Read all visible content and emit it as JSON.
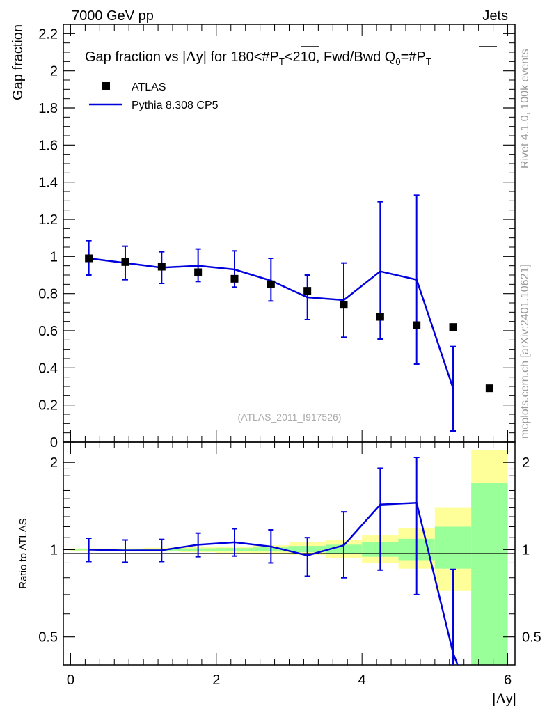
{
  "header": {
    "left": "7000 GeV pp",
    "right": "Jets"
  },
  "side": {
    "rivet": "Rivet 4.1.0,  100k events",
    "mcplots": "mcplots.cern.ch [arXiv:2401.10621]"
  },
  "colors": {
    "data": "#000000",
    "mc": "#0000dd",
    "band_outer": "#ffff99",
    "band_inner": "#99ff99"
  },
  "chart_data": [
    {
      "type": "scatter",
      "panel": "main",
      "title_parts": {
        "pre": "Gap fraction vs |",
        "delta": "Δ",
        "mid": "y| for 180<#",
        "pt1": "P",
        "sub1": "T",
        "post": "<210, Fwd/Bwd Q",
        "q_sub": "0",
        "eq": "=#",
        "pt2": "P",
        "sub2": "T"
      },
      "ylabel": "Gap fraction",
      "ylim": [
        0,
        2.25
      ],
      "yticks": [
        "0",
        "0.2",
        "0.4",
        "0.6",
        "0.8",
        "1",
        "1.2",
        "1.4",
        "1.6",
        "1.8",
        "2",
        "2.2"
      ],
      "xlim": [
        -0.1,
        6.1
      ],
      "watermark": "(ATLAS_2011_I917526)",
      "legend": [
        {
          "name": "ATLAS",
          "marker": "square"
        },
        {
          "name": "Pythia 8.308 CP5",
          "marker": "line"
        }
      ],
      "series": [
        {
          "name": "ATLAS",
          "x": [
            0.25,
            0.75,
            1.25,
            1.75,
            2.25,
            2.75,
            3.25,
            3.75,
            4.25,
            4.75,
            5.25,
            5.75
          ],
          "y": [
            0.99,
            0.97,
            0.945,
            0.915,
            0.88,
            0.85,
            0.815,
            0.74,
            0.675,
            0.63,
            0.62,
            0.29
          ]
        },
        {
          "name": "Pythia 8.308 CP5",
          "x": [
            0.25,
            0.75,
            1.25,
            1.75,
            2.25,
            2.75,
            3.25,
            3.75,
            4.25,
            4.75,
            5.25
          ],
          "y": [
            0.99,
            0.965,
            0.94,
            0.95,
            0.93,
            0.87,
            0.78,
            0.765,
            0.92,
            0.875,
            0.29
          ],
          "err_low": [
            0.9,
            0.875,
            0.855,
            0.865,
            0.835,
            0.76,
            0.66,
            0.565,
            0.555,
            0.42,
            0.06
          ],
          "err_high": [
            1.085,
            1.055,
            1.025,
            1.04,
            1.03,
            0.99,
            0.9,
            0.965,
            1.295,
            1.33,
            0.515
          ]
        }
      ]
    },
    {
      "type": "line",
      "panel": "ratio",
      "ylabel": "Ratio to ATLAS",
      "ylim": [
        0.4,
        2.35
      ],
      "yscale": "log",
      "yticks": [
        "0.5",
        "1",
        "2"
      ],
      "xlabel_parts": {
        "pre": "|",
        "delta": "Δ",
        "post": "y|"
      },
      "xlim": [
        -0.1,
        6.1
      ],
      "xticks": [
        "0",
        "2",
        "4",
        "6"
      ],
      "bands": {
        "x_edges": [
          0,
          0.5,
          1,
          1.5,
          2,
          2.5,
          3,
          3.5,
          4,
          4.5,
          5,
          5.5,
          6
        ],
        "outer_low": [
          0.99,
          0.99,
          0.985,
          0.98,
          0.975,
          0.97,
          0.96,
          0.935,
          0.9,
          0.86,
          0.72,
          0.4
        ],
        "outer_high": [
          1.01,
          1.01,
          1.015,
          1.02,
          1.025,
          1.035,
          1.06,
          1.08,
          1.12,
          1.19,
          1.4,
          2.2
        ],
        "inner_low": [
          0.995,
          0.995,
          0.992,
          0.99,
          0.99,
          0.985,
          0.98,
          0.965,
          0.945,
          0.92,
          0.86,
          0.4
        ],
        "inner_high": [
          1.005,
          1.005,
          1.008,
          1.01,
          1.012,
          1.018,
          1.03,
          1.04,
          1.06,
          1.09,
          1.2,
          1.7
        ]
      },
      "series": [
        {
          "name": "Pythia 8.308 CP5 / ATLAS",
          "x": [
            0.25,
            0.75,
            1.25,
            1.75,
            2.25,
            2.75,
            3.25,
            3.75,
            4.25,
            4.75,
            5.25
          ],
          "y": [
            1.0,
            0.993,
            0.995,
            1.04,
            1.06,
            1.025,
            0.955,
            1.035,
            1.43,
            1.45,
            0.44
          ],
          "err_low": [
            0.91,
            0.905,
            0.91,
            0.945,
            0.95,
            0.9,
            0.81,
            0.8,
            0.85,
            0.7,
            0.34
          ],
          "err_high": [
            1.095,
            1.08,
            1.085,
            1.14,
            1.18,
            1.17,
            1.1,
            1.35,
            1.91,
            2.08,
            0.855
          ]
        }
      ]
    }
  ]
}
